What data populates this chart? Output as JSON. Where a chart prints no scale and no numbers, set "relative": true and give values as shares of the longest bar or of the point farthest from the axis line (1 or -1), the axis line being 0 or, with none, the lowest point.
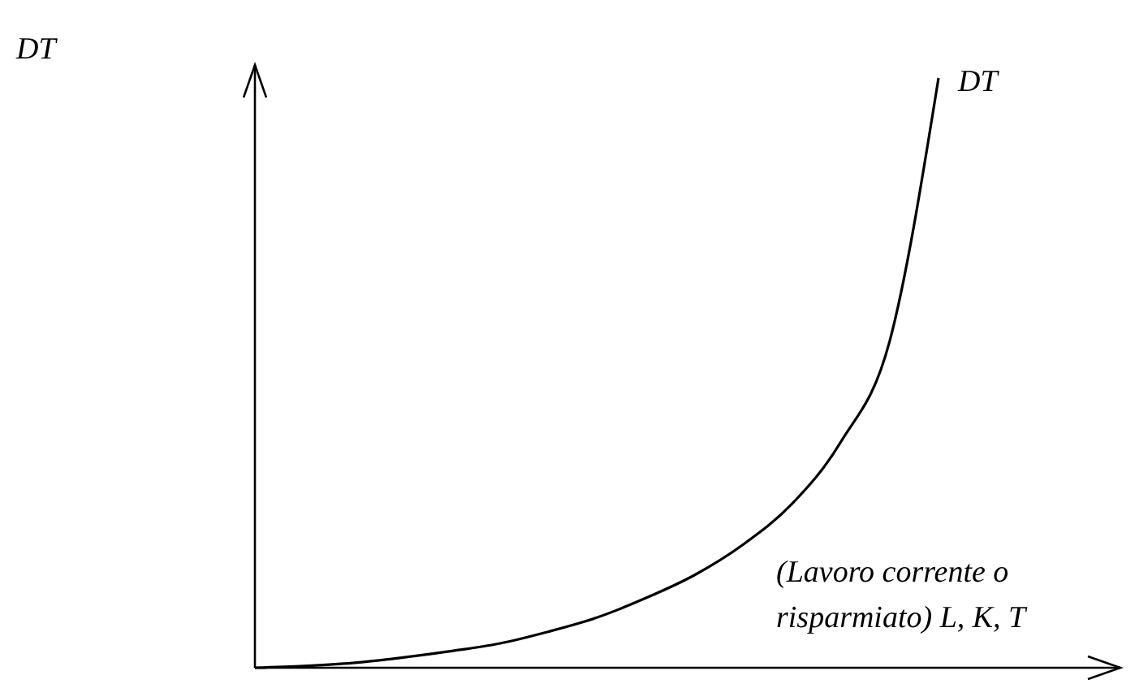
{
  "chart_data": {
    "type": "line",
    "relative": true,
    "annotations": [
      "DT"
    ],
    "xlabel": "(Lavoro corrente o risparmiato) L, K, T",
    "categories": [
      null,
      null,
      null,
      null,
      null,
      null,
      null,
      null,
      null,
      null,
      null,
      null,
      null,
      null,
      null
    ],
    "series": [
      {
        "name": "DT",
        "color": "#000000",
        "values": [
          0,
          0.003,
          0.008,
          0.017,
          0.028,
          0.041,
          0.061,
          0.085,
          0.118,
          0.157,
          0.209,
          0.278,
          0.383,
          0.554,
          1
        ]
      }
    ],
    "marker": "none",
    "line_style": "solid",
    "grid": false
  }
}
